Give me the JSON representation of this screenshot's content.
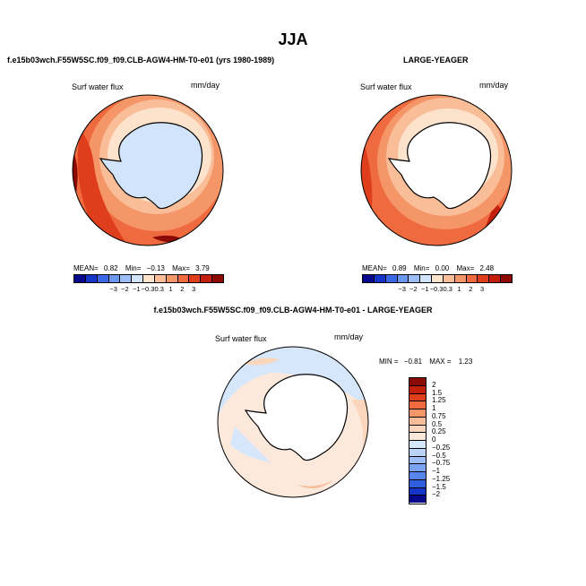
{
  "title": "JJA",
  "panels": {
    "top_left": {
      "case_title": "f.e15b03wch.F55W5SC.f09_f09.CLB-AGW4-HM-T0-e01 (yrs 1980-1989)",
      "field_label": "Surf water flux",
      "units": "mm/day",
      "stats": {
        "mean_label": "MEAN=",
        "mean": "0.82",
        "min_label": "Min=",
        "min": "−0.13",
        "max_label": "Max=",
        "max": "3.79"
      }
    },
    "top_right": {
      "case_title": "LARGE-YEAGER",
      "field_label": "Surf water flux",
      "units": "mm/day",
      "stats": {
        "mean_label": "MEAN=",
        "mean": "0.89",
        "min_label": "Min=",
        "min": "0.00",
        "max_label": "Max=",
        "max": "2.48"
      }
    },
    "bottom": {
      "case_title": "f.e15b03wch.F55W5SC.f09_f09.CLB-AGW4-HM-T0-e01 - LARGE-YEAGER",
      "field_label": "Surf water flux",
      "units": "mm/day",
      "stats": {
        "min_label": "MIN =",
        "min": "−0.81",
        "max_label": "MAX =",
        "max": "1.23"
      }
    }
  },
  "colorbar_top": {
    "labels": [
      "−3",
      "−2",
      "−1",
      "−0.3",
      "0.3",
      "1",
      "2",
      "3"
    ],
    "colors": [
      "#08088a",
      "#1535c8",
      "#3a68e6",
      "#6a97f0",
      "#9dbdf7",
      "#d2e4fb",
      "#fde2cc",
      "#f9bd98",
      "#f59669",
      "#ef6a3f",
      "#de3e1c",
      "#c41e0c",
      "#8c0a04"
    ]
  },
  "colorbar_diff": {
    "labels": [
      "2",
      "1.5",
      "1.25",
      "1",
      "0.75",
      "0.5",
      "0.25",
      "0",
      "−0.25",
      "−0.5",
      "−0.75",
      "−1",
      "−1.25",
      "−1.5",
      "−2"
    ],
    "colors": [
      "#8c0a04",
      "#c41e0c",
      "#de3e1c",
      "#ef6a3f",
      "#f59669",
      "#f9bd98",
      "#fbd6bc",
      "#fde9dc",
      "#d6e6fb",
      "#bcd3f8",
      "#9dbdf7",
      "#7aa3f2",
      "#5686ec",
      "#2f5fdc",
      "#1535c8",
      "#08088a"
    ]
  },
  "chart_data": [
    {
      "type": "heatmap",
      "title": "f.e15b03wch.F55W5SC.f09_f09.CLB-AGW4-HM-T0-e01 (yrs 1980-1989)",
      "variable": "Surf water flux",
      "units": "mm/day",
      "season": "JJA",
      "projection": "south polar stereographic",
      "mean": 0.82,
      "min": -0.13,
      "max": 3.79,
      "contour_levels": [
        -3,
        -2,
        -1,
        -0.3,
        0.3,
        1,
        2,
        3
      ]
    },
    {
      "type": "heatmap",
      "title": "LARGE-YEAGER",
      "variable": "Surf water flux",
      "units": "mm/day",
      "season": "JJA",
      "projection": "south polar stereographic",
      "mean": 0.89,
      "min": 0.0,
      "max": 2.48,
      "contour_levels": [
        -3,
        -2,
        -1,
        -0.3,
        0.3,
        1,
        2,
        3
      ]
    },
    {
      "type": "heatmap",
      "title": "f.e15b03wch.F55W5SC.f09_f09.CLB-AGW4-HM-T0-e01 - LARGE-YEAGER",
      "variable": "Surf water flux",
      "units": "mm/day",
      "season": "JJA",
      "projection": "south polar stereographic",
      "min": -0.81,
      "max": 1.23,
      "contour_levels": [
        -2,
        -1.5,
        -1.25,
        -1,
        -0.75,
        -0.5,
        -0.25,
        0,
        0.25,
        0.5,
        0.75,
        1,
        1.25,
        1.5,
        2
      ]
    }
  ]
}
